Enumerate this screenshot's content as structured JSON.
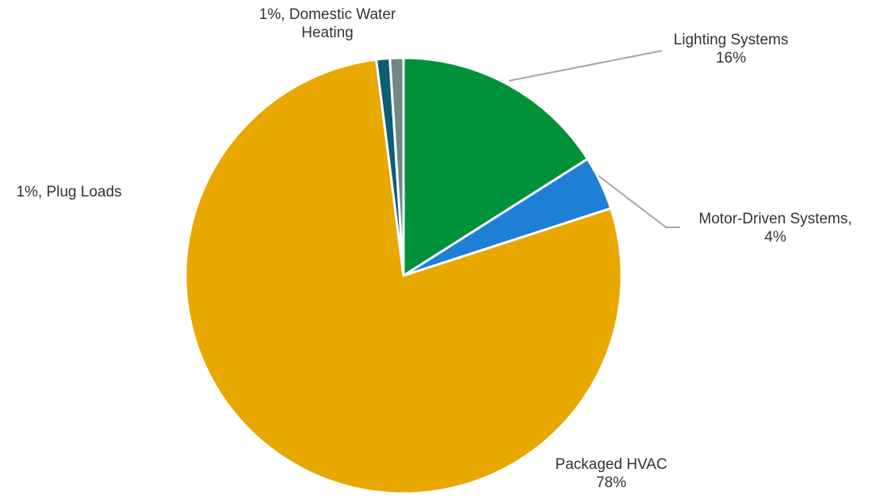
{
  "chart_data": {
    "type": "pie",
    "title": "",
    "start": "12 o'clock",
    "direction": "clockwise",
    "slices": [
      {
        "name": "Lighting Systems",
        "value": 16,
        "label_lines": [
          "Lighting Systems",
          "16%"
        ],
        "color": "#00923a",
        "leader_line": true
      },
      {
        "name": "Motor-Driven Systems",
        "value": 4,
        "label_lines": [
          "Motor-Driven Systems,",
          "4%"
        ],
        "color": "#1e7fd6",
        "leader_line": true
      },
      {
        "name": "Packaged HVAC",
        "value": 78,
        "label_lines": [
          "Packaged HVAC",
          "78%"
        ],
        "color": "#e8a800",
        "leader_line": false
      },
      {
        "name": "Plug Loads",
        "value": 1,
        "label_lines": [
          "1%, Plug Loads"
        ],
        "color": "#0d5e75",
        "leader_line": false
      },
      {
        "name": "Domestic Water Heating",
        "value": 1,
        "label_lines": [
          "1%, Domestic Water",
          "Heating"
        ],
        "color": "#6f8a84",
        "leader_line": false
      }
    ],
    "slice_border_color": "#ffffff",
    "leader_line_color": "#a6a6a6",
    "label_color": "#333333",
    "legend": "none"
  }
}
